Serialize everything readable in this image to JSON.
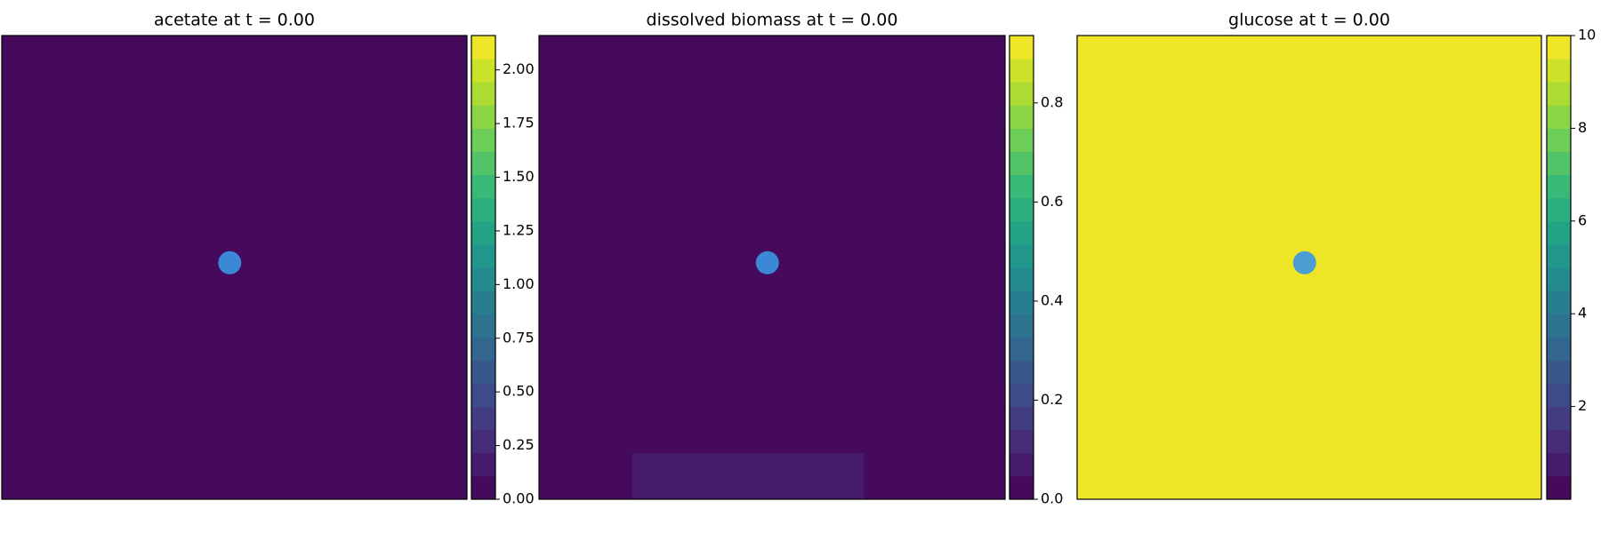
{
  "chart_data": [
    {
      "type": "heatmap",
      "title": "acetate at t = 0.00",
      "xlim": [
        0,
        1
      ],
      "ylim": [
        0,
        1
      ],
      "background": 0,
      "clim": [
        0,
        2.16
      ],
      "levels": 20,
      "cticks": [
        {
          "value": 0,
          "label": "0.00"
        },
        {
          "value": 0.25,
          "label": "0.25"
        },
        {
          "value": 0.5,
          "label": "0.50"
        },
        {
          "value": 0.75,
          "label": "0.75"
        },
        {
          "value": 1,
          "label": "1.00"
        },
        {
          "value": 1.25,
          "label": "1.25"
        },
        {
          "value": 1.5,
          "label": "1.50"
        },
        {
          "value": 1.75,
          "label": "1.75"
        },
        {
          "value": 2,
          "label": "2.00"
        }
      ],
      "marker": {
        "x": 0.49,
        "y": 0.51,
        "color": "#3a88d6"
      }
    },
    {
      "type": "heatmap",
      "title": "dissolved biomass at t = 0.00",
      "xlim": [
        0,
        1
      ],
      "ylim": [
        0,
        1
      ],
      "background": 0,
      "clim": [
        0,
        0.936
      ],
      "levels": 20,
      "regions": [
        {
          "x": [
            0.2,
            0.697
          ],
          "y": [
            0,
            0.1
          ],
          "value": 0.07
        }
      ],
      "cticks": [
        {
          "value": 0,
          "label": "0.0"
        },
        0.2,
        0.4,
        0.6,
        0.8
      ],
      "marker": {
        "x": 0.49,
        "y": 0.51,
        "color": "#3a88d6"
      }
    },
    {
      "type": "heatmap",
      "title": "glucose at t = 0.00",
      "xlim": [
        0,
        1
      ],
      "ylim": [
        0,
        1
      ],
      "background": 10,
      "clim": [
        0,
        10
      ],
      "levels": 20,
      "cticks": [
        2,
        4,
        6,
        8,
        10
      ],
      "marker": {
        "x": 0.49,
        "y": 0.51,
        "color": "#4a9ed2"
      }
    }
  ]
}
